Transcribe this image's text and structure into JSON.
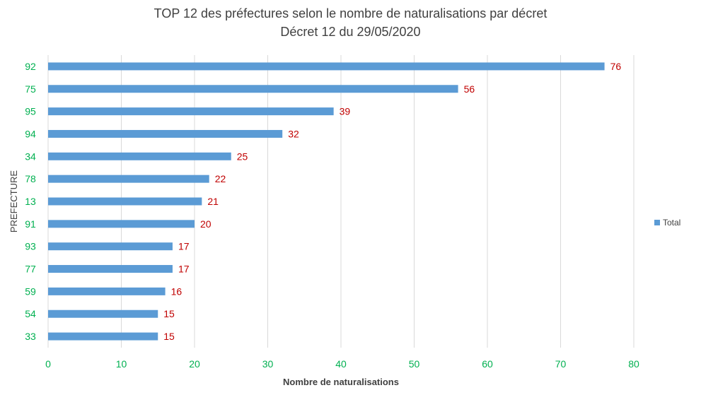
{
  "chart_data": {
    "type": "bar",
    "orientation": "horizontal",
    "title_line1": "TOP 12 des préfectures selon le nombre de naturalisations par décret",
    "title_line2": "Décret 12 du 29/05/2020",
    "xlabel": "Nombre de naturalisations",
    "ylabel": "PREFECTURE",
    "categories": [
      "92",
      "75",
      "95",
      "94",
      "34",
      "78",
      "13",
      "91",
      "93",
      "77",
      "59",
      "54",
      "33"
    ],
    "series": [
      {
        "name": "Total",
        "values": [
          76,
          56,
          39,
          32,
          25,
          22,
          21,
          20,
          17,
          17,
          16,
          15,
          15
        ]
      }
    ],
    "xlim": [
      0,
      80
    ],
    "xticks": [
      0,
      10,
      20,
      30,
      40,
      50,
      60,
      70,
      80
    ],
    "grid": "vertical",
    "legend_position": "right",
    "data_labels": true
  },
  "colors": {
    "bar": "#5B9BD5",
    "category_label": "#00B050",
    "tick_label": "#00B050",
    "data_label": "#C00000",
    "grid": "#D9D9D9",
    "title": "#404040",
    "axis_title": "#404040"
  }
}
